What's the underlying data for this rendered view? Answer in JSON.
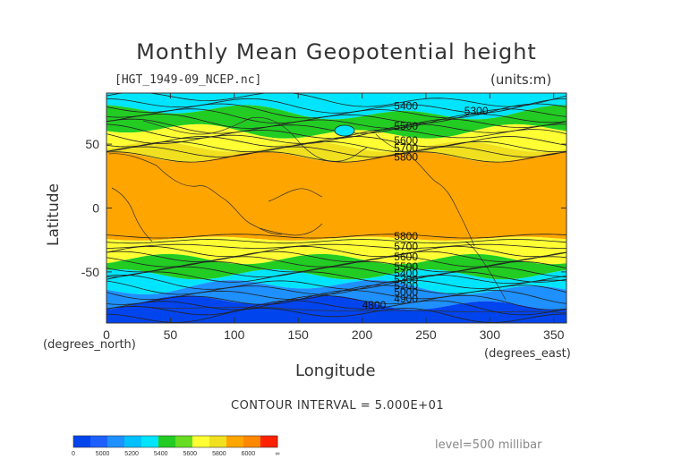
{
  "title": "Monthly Mean Geopotential height",
  "file_label": "[HGT_1949-09_NCEP.nc]",
  "units_label": "(units:m)",
  "ylabel": "Latitude",
  "xlabel": "Longitude",
  "x_unit_left": "(degrees_north)",
  "x_unit_right": "(degrees_east)",
  "contour_interval": "CONTOUR INTERVAL = 5.000E+01",
  "level": "level=500 millibar",
  "chart_data": {
    "type": "heatmap",
    "xlim": [
      0,
      360
    ],
    "ylim": [
      -90,
      90
    ],
    "x_ticks": [
      "0",
      "50",
      "100",
      "150",
      "200",
      "250",
      "300",
      "350"
    ],
    "y_ticks": [
      "50",
      "0",
      "-50"
    ],
    "bands": [
      {
        "from_lat": 90,
        "to_lat": 75,
        "value": 5350,
        "color": "#00e5ff"
      },
      {
        "from_lat": 75,
        "to_lat": 60,
        "value": 5500,
        "color": "#22cc22"
      },
      {
        "from_lat": 60,
        "to_lat": 48,
        "value": 5700,
        "color": "#ffff33"
      },
      {
        "from_lat": 48,
        "to_lat": 40,
        "value": 5750,
        "color": "#f0e020"
      },
      {
        "from_lat": 40,
        "to_lat": -24,
        "value": 5850,
        "color": "#ffa500"
      },
      {
        "from_lat": -24,
        "to_lat": -40,
        "value": 5750,
        "color": "#ffff33"
      },
      {
        "from_lat": -40,
        "to_lat": -52,
        "value": 5500,
        "color": "#22cc22"
      },
      {
        "from_lat": -52,
        "to_lat": -62,
        "value": 5300,
        "color": "#00e5ff"
      },
      {
        "from_lat": -62,
        "to_lat": -74,
        "value": 5100,
        "color": "#1e90ff"
      },
      {
        "from_lat": -74,
        "to_lat": -90,
        "value": 4900,
        "color": "#0044ee"
      }
    ],
    "contour_labels": [
      {
        "lon": 120,
        "lat": 80,
        "text": "5400"
      },
      {
        "lon": 280,
        "lat": 76,
        "text": "5300"
      },
      {
        "lon": 120,
        "lat": 64,
        "text": "5500"
      },
      {
        "lon": 120,
        "lat": 53,
        "text": "5600"
      },
      {
        "lon": 120,
        "lat": 47,
        "text": "5700"
      },
      {
        "lon": 120,
        "lat": 40,
        "text": "5800"
      },
      {
        "lon": 120,
        "lat": -22,
        "text": "5800"
      },
      {
        "lon": 120,
        "lat": -30,
        "text": "5700"
      },
      {
        "lon": 120,
        "lat": -38,
        "text": "5600"
      },
      {
        "lon": 120,
        "lat": -46,
        "text": "5500"
      },
      {
        "lon": 120,
        "lat": -51,
        "text": "5400"
      },
      {
        "lon": 120,
        "lat": -56,
        "text": "5300"
      },
      {
        "lon": 120,
        "lat": -61,
        "text": "5200"
      },
      {
        "lon": 120,
        "lat": -66,
        "text": "5000"
      },
      {
        "lon": 120,
        "lat": -71,
        "text": "4900"
      },
      {
        "lon": 200,
        "lat": -76,
        "text": "4800"
      }
    ]
  },
  "colorbar": {
    "colors": [
      "#0044ee",
      "#1e60ff",
      "#1e90ff",
      "#00c0ff",
      "#00e5ff",
      "#22cc22",
      "#66dd22",
      "#ffff33",
      "#f0e020",
      "#ffa500",
      "#ff8800",
      "#ff2200"
    ],
    "labels": [
      "0",
      "5000",
      "5200",
      "5400",
      "5600",
      "5800",
      "6000",
      "∞"
    ]
  }
}
